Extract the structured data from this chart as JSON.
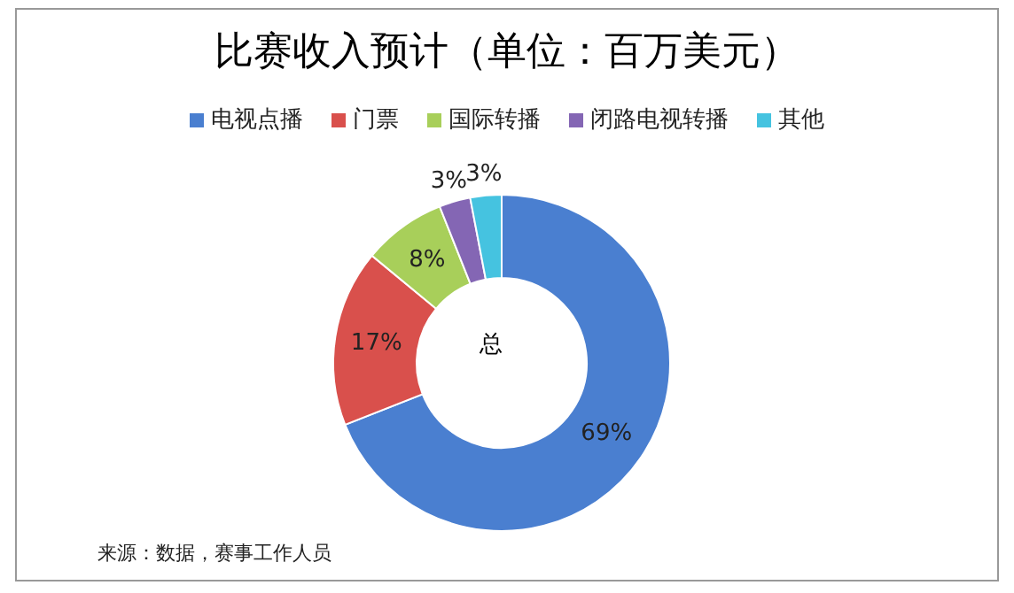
{
  "chart_data": {
    "type": "donut",
    "title": "比赛收入预计（单位：百万美元）",
    "categories": [
      "电视点播",
      "门票",
      "国际转播",
      "闭路电视转播",
      "其他"
    ],
    "values": [
      69,
      17,
      8,
      3,
      3
    ],
    "value_labels": [
      "69%",
      "17%",
      "8%",
      "3%",
      "3%"
    ],
    "colors": [
      "#4a7fd0",
      "#d9504c",
      "#a8cf5a",
      "#8466b4",
      "#45c3e0"
    ],
    "legend": "top",
    "annotations": [
      "总",
      "来源：数据，赛事工作人员"
    ]
  }
}
